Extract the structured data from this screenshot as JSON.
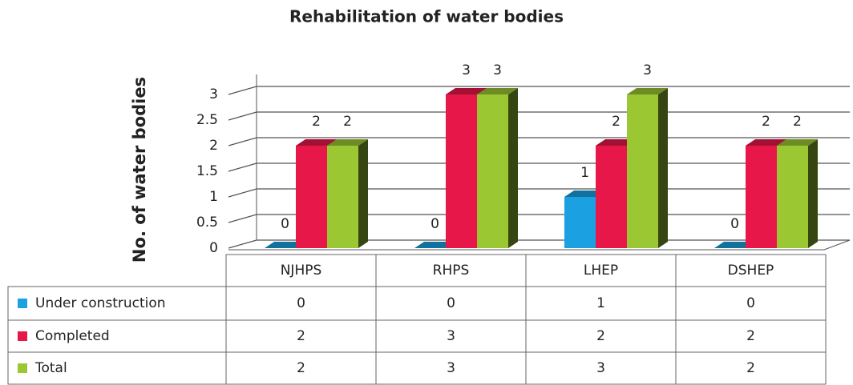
{
  "chart_data": {
    "type": "bar3d",
    "title": "Rehabilitation of water bodies",
    "y_label": "No. of water bodies",
    "categories": [
      "NJHPS",
      "RHPS",
      "LHEP",
      "DSHEP"
    ],
    "series": [
      {
        "name": "Under construction",
        "color": "#1ba1e2",
        "values": [
          0,
          0,
          1,
          0
        ]
      },
      {
        "name": "Completed",
        "color": "#e8174a",
        "values": [
          2,
          3,
          2,
          2
        ]
      },
      {
        "name": "Total",
        "color": "#9bc832",
        "values": [
          2,
          3,
          3,
          2
        ]
      }
    ],
    "ylim": [
      0,
      3
    ],
    "yticks": [
      0,
      0.5,
      1,
      1.5,
      2,
      2.5,
      3
    ],
    "grid": true
  }
}
